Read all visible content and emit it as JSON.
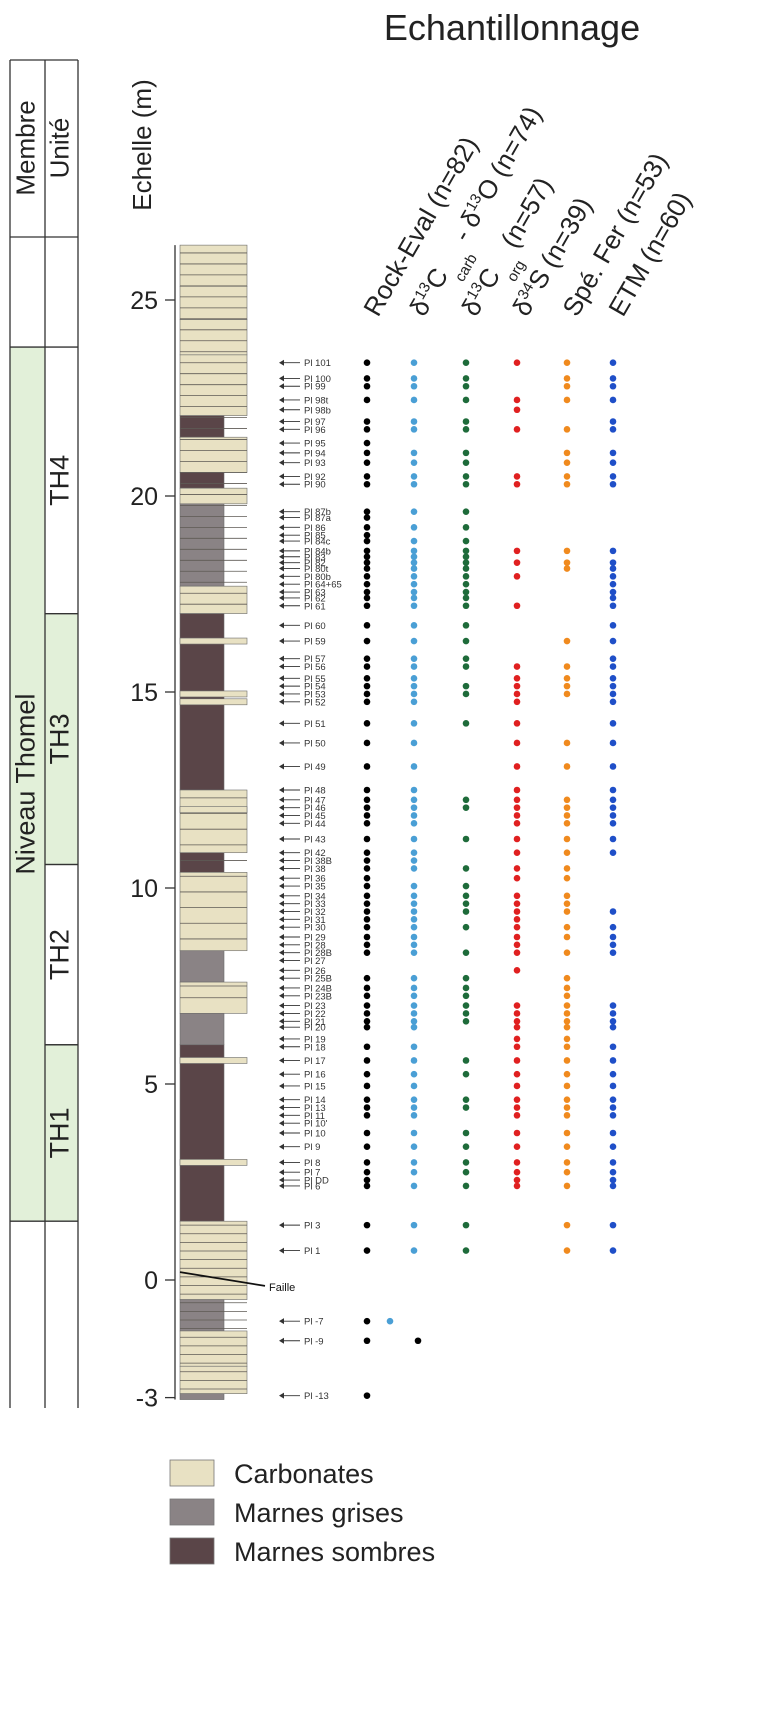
{
  "title": "Echantillonnage",
  "table_header": {
    "membre": "Membre",
    "unite": "Unité",
    "echelle": "Echelle (m)"
  },
  "membre_name": "Niveau Thomel",
  "units": [
    {
      "label": "TH4",
      "from": 17.0,
      "to": 23.8
    },
    {
      "label": "TH3",
      "from": 10.6,
      "to": 17.0
    },
    {
      "label": "TH2",
      "from": 6.0,
      "to": 10.6
    },
    {
      "label": "TH1",
      "from": 1.5,
      "to": 6.0
    }
  ],
  "scale_ticks": [
    "25",
    "20",
    "15",
    "10",
    "5",
    "0",
    "-3"
  ],
  "scale_tick_values": [
    25,
    20,
    15,
    10,
    5,
    0,
    -3
  ],
  "faille_label": "Faille",
  "columns": [
    {
      "key": "re",
      "label_parts": [
        "Rock-Eval (n=82)"
      ],
      "color": "#000000"
    },
    {
      "key": "cc",
      "label_parts": [
        "δ",
        "13",
        "C",
        "carb",
        " - δ",
        "13",
        "O (n=74)"
      ],
      "color": "#4a9fd5"
    },
    {
      "key": "co",
      "label_parts": [
        "δ",
        "13",
        "C",
        "org",
        " (n=57)"
      ],
      "color": "#1e6b3a"
    },
    {
      "key": "s",
      "label_parts": [
        "δ",
        "34",
        "S (n=39)"
      ],
      "color": "#e02020"
    },
    {
      "key": "fe",
      "label_parts": [
        "Spé. Fer (n=53)"
      ],
      "color": "#f08a1e"
    },
    {
      "key": "etm",
      "label_parts": [
        "ETM (n=60)"
      ],
      "color": "#1f4fc8"
    }
  ],
  "samples": [
    {
      "name": "Pl 101",
      "depth": 23.4,
      "cols": [
        "re",
        "cc",
        "co",
        "s",
        "fe",
        "etm"
      ]
    },
    {
      "name": "Pl 100",
      "depth": 23.0,
      "cols": [
        "re",
        "cc",
        "co",
        "fe",
        "etm"
      ]
    },
    {
      "name": "Pl 99",
      "depth": 22.8,
      "cols": [
        "re",
        "cc",
        "co",
        "fe",
        "etm"
      ]
    },
    {
      "name": "Pl 98t",
      "depth": 22.45,
      "cols": [
        "re",
        "cc",
        "co",
        "s",
        "fe",
        "etm"
      ]
    },
    {
      "name": "Pl 98b",
      "depth": 22.2,
      "cols": [
        "s"
      ]
    },
    {
      "name": "Pl 97",
      "depth": 21.9,
      "cols": [
        "re",
        "cc",
        "co",
        "etm"
      ]
    },
    {
      "name": "Pl 96",
      "depth": 21.7,
      "cols": [
        "re",
        "cc",
        "co",
        "s",
        "fe",
        "etm"
      ]
    },
    {
      "name": "Pl 95",
      "depth": 21.35,
      "cols": [
        "re"
      ]
    },
    {
      "name": "Pl 94",
      "depth": 21.1,
      "cols": [
        "re",
        "cc",
        "co",
        "fe",
        "etm"
      ]
    },
    {
      "name": "Pl 93",
      "depth": 20.85,
      "cols": [
        "re",
        "cc",
        "co",
        "fe",
        "etm"
      ]
    },
    {
      "name": "Pl 92",
      "depth": 20.5,
      "cols": [
        "re",
        "cc",
        "co",
        "s",
        "fe",
        "etm"
      ]
    },
    {
      "name": "Pl 90",
      "depth": 20.3,
      "cols": [
        "re",
        "cc",
        "co",
        "s",
        "fe",
        "etm"
      ]
    },
    {
      "name": "Pl 87b",
      "depth": 19.6,
      "cols": [
        "re",
        "cc",
        "co"
      ]
    },
    {
      "name": "Pl 87a",
      "depth": 19.45,
      "cols": [
        "re"
      ]
    },
    {
      "name": "Pl 86",
      "depth": 19.2,
      "cols": [
        "re",
        "cc",
        "co"
      ]
    },
    {
      "name": "Pl 85",
      "depth": 19.0,
      "cols": [
        "re"
      ]
    },
    {
      "name": "Pl 84c",
      "depth": 18.85,
      "cols": [
        "re",
        "cc",
        "co"
      ]
    },
    {
      "name": "Pl 84b",
      "depth": 18.6,
      "cols": [
        "re",
        "cc",
        "co",
        "s",
        "fe",
        "etm"
      ]
    },
    {
      "name": "Pl 83",
      "depth": 18.45,
      "cols": [
        "re",
        "cc",
        "co"
      ]
    },
    {
      "name": "Pl 82",
      "depth": 18.3,
      "cols": [
        "re",
        "cc",
        "co",
        "s",
        "fe",
        "etm"
      ]
    },
    {
      "name": "Pl 80t",
      "depth": 18.15,
      "cols": [
        "re",
        "cc",
        "co",
        "fe",
        "etm"
      ]
    },
    {
      "name": "Pl 80b",
      "depth": 17.95,
      "cols": [
        "re",
        "cc",
        "co",
        "s",
        "etm"
      ]
    },
    {
      "name": "Pl 64+65",
      "depth": 17.75,
      "cols": [
        "re",
        "cc",
        "co",
        "etm"
      ]
    },
    {
      "name": "Pl 63",
      "depth": 17.55,
      "cols": [
        "re",
        "cc",
        "co",
        "etm"
      ]
    },
    {
      "name": "Pl 62",
      "depth": 17.4,
      "cols": [
        "re",
        "cc",
        "co",
        "etm"
      ]
    },
    {
      "name": "Pl 61",
      "depth": 17.2,
      "cols": [
        "re",
        "cc",
        "co",
        "s",
        "etm"
      ]
    },
    {
      "name": "Pl 60",
      "depth": 16.7,
      "cols": [
        "re",
        "cc",
        "co",
        "etm"
      ]
    },
    {
      "name": "Pl 59",
      "depth": 16.3,
      "cols": [
        "re",
        "cc",
        "co",
        "fe",
        "etm"
      ]
    },
    {
      "name": "Pl 57",
      "depth": 15.85,
      "cols": [
        "re",
        "cc",
        "co",
        "etm"
      ]
    },
    {
      "name": "Pl 56",
      "depth": 15.65,
      "cols": [
        "re",
        "cc",
        "co",
        "s",
        "fe",
        "etm"
      ]
    },
    {
      "name": "Pl 55",
      "depth": 15.35,
      "cols": [
        "re",
        "cc",
        "s",
        "fe",
        "etm"
      ]
    },
    {
      "name": "Pl 54",
      "depth": 15.15,
      "cols": [
        "re",
        "cc",
        "co",
        "s",
        "fe",
        "etm"
      ]
    },
    {
      "name": "Pl 53",
      "depth": 14.95,
      "cols": [
        "re",
        "cc",
        "co",
        "s",
        "fe",
        "etm"
      ]
    },
    {
      "name": "Pl 52",
      "depth": 14.75,
      "cols": [
        "re",
        "cc",
        "s",
        "etm"
      ]
    },
    {
      "name": "Pl 51",
      "depth": 14.2,
      "cols": [
        "re",
        "cc",
        "co",
        "s",
        "etm"
      ]
    },
    {
      "name": "Pl 50",
      "depth": 13.7,
      "cols": [
        "re",
        "cc",
        "s",
        "fe",
        "etm"
      ]
    },
    {
      "name": "Pl 49",
      "depth": 13.1,
      "cols": [
        "re",
        "cc",
        "s",
        "fe",
        "etm"
      ]
    },
    {
      "name": "Pl 48",
      "depth": 12.5,
      "cols": [
        "re",
        "cc",
        "s",
        "etm"
      ]
    },
    {
      "name": "Pl 47",
      "depth": 12.25,
      "cols": [
        "re",
        "cc",
        "co",
        "s",
        "fe",
        "etm"
      ]
    },
    {
      "name": "Pl 46",
      "depth": 12.05,
      "cols": [
        "re",
        "cc",
        "co",
        "s",
        "fe",
        "etm"
      ]
    },
    {
      "name": "Pl 45",
      "depth": 11.85,
      "cols": [
        "re",
        "cc",
        "s",
        "fe",
        "etm"
      ]
    },
    {
      "name": "Pl 44",
      "depth": 11.65,
      "cols": [
        "re",
        "cc",
        "s",
        "fe",
        "etm"
      ]
    },
    {
      "name": "Pl 43",
      "depth": 11.25,
      "cols": [
        "re",
        "cc",
        "co",
        "s",
        "fe",
        "etm"
      ]
    },
    {
      "name": "Pl 42",
      "depth": 10.9,
      "cols": [
        "re",
        "cc",
        "s",
        "fe",
        "etm"
      ]
    },
    {
      "name": "Pl 38B",
      "depth": 10.7,
      "cols": [
        "re",
        "cc"
      ]
    },
    {
      "name": "Pl 38",
      "depth": 10.5,
      "cols": [
        "re",
        "cc",
        "co",
        "s",
        "fe"
      ]
    },
    {
      "name": "Pl 36",
      "depth": 10.25,
      "cols": [
        "re",
        "s",
        "fe"
      ]
    },
    {
      "name": "Pl 35",
      "depth": 10.05,
      "cols": [
        "re",
        "cc",
        "co"
      ]
    },
    {
      "name": "Pl 34",
      "depth": 9.8,
      "cols": [
        "re",
        "cc",
        "co",
        "s",
        "fe"
      ]
    },
    {
      "name": "Pl 33",
      "depth": 9.6,
      "cols": [
        "re",
        "cc",
        "co",
        "s",
        "fe"
      ]
    },
    {
      "name": "Pl 32",
      "depth": 9.4,
      "cols": [
        "re",
        "cc",
        "co",
        "s",
        "fe",
        "etm"
      ]
    },
    {
      "name": "Pl 31",
      "depth": 9.2,
      "cols": [
        "re",
        "cc",
        "s"
      ]
    },
    {
      "name": "Pl 30",
      "depth": 9.0,
      "cols": [
        "re",
        "cc",
        "co",
        "s",
        "fe",
        "etm"
      ]
    },
    {
      "name": "Pl 29",
      "depth": 8.75,
      "cols": [
        "re",
        "cc",
        "s",
        "fe",
        "etm"
      ]
    },
    {
      "name": "Pl 28",
      "depth": 8.55,
      "cols": [
        "re",
        "cc",
        "s",
        "etm"
      ]
    },
    {
      "name": "Pl 28B",
      "depth": 8.35,
      "cols": [
        "re",
        "cc",
        "co",
        "s",
        "fe",
        "etm"
      ]
    },
    {
      "name": "Pl 27",
      "depth": 8.15,
      "cols": []
    },
    {
      "name": "Pl 26",
      "depth": 7.9,
      "cols": [
        "s"
      ]
    },
    {
      "name": "Pl 25B",
      "depth": 7.7,
      "cols": [
        "re",
        "cc",
        "co",
        "fe"
      ]
    },
    {
      "name": "Pl 24B",
      "depth": 7.45,
      "cols": [
        "re",
        "cc",
        "co",
        "fe"
      ]
    },
    {
      "name": "Pl 23B",
      "depth": 7.25,
      "cols": [
        "re",
        "cc",
        "co",
        "fe"
      ]
    },
    {
      "name": "Pl 23",
      "depth": 7.0,
      "cols": [
        "re",
        "cc",
        "co",
        "s",
        "fe",
        "etm"
      ]
    },
    {
      "name": "Pl 22",
      "depth": 6.8,
      "cols": [
        "re",
        "cc",
        "co",
        "s",
        "fe",
        "etm"
      ]
    },
    {
      "name": "Pl 21",
      "depth": 6.6,
      "cols": [
        "re",
        "cc",
        "co",
        "s",
        "fe",
        "etm"
      ]
    },
    {
      "name": "Pl 20",
      "depth": 6.45,
      "cols": [
        "re",
        "cc",
        "s",
        "fe",
        "etm"
      ]
    },
    {
      "name": "Pl 19",
      "depth": 6.15,
      "cols": [
        "s",
        "fe"
      ]
    },
    {
      "name": "Pl 18",
      "depth": 5.95,
      "cols": [
        "re",
        "cc",
        "s",
        "fe",
        "etm"
      ]
    },
    {
      "name": "Pl 17",
      "depth": 5.6,
      "cols": [
        "re",
        "cc",
        "co",
        "s",
        "fe",
        "etm"
      ]
    },
    {
      "name": "Pl 16",
      "depth": 5.25,
      "cols": [
        "re",
        "cc",
        "co",
        "s",
        "fe",
        "etm"
      ]
    },
    {
      "name": "Pl 15",
      "depth": 4.95,
      "cols": [
        "re",
        "cc",
        "s",
        "fe",
        "etm"
      ]
    },
    {
      "name": "Pl 14",
      "depth": 4.6,
      "cols": [
        "re",
        "cc",
        "co",
        "s",
        "fe",
        "etm"
      ]
    },
    {
      "name": "Pl 13",
      "depth": 4.4,
      "cols": [
        "re",
        "cc",
        "co",
        "s",
        "fe",
        "etm"
      ]
    },
    {
      "name": "Pl 11",
      "depth": 4.2,
      "cols": [
        "re",
        "cc",
        "s",
        "fe",
        "etm"
      ]
    },
    {
      "name": "Pl 10'",
      "depth": 4.0,
      "cols": []
    },
    {
      "name": "Pl 10",
      "depth": 3.75,
      "cols": [
        "re",
        "cc",
        "co",
        "s",
        "fe",
        "etm"
      ]
    },
    {
      "name": "Pl 9",
      "depth": 3.4,
      "cols": [
        "re",
        "cc",
        "co",
        "s",
        "fe",
        "etm"
      ]
    },
    {
      "name": "Pl 8",
      "depth": 3.0,
      "cols": [
        "re",
        "cc",
        "co",
        "s",
        "fe",
        "etm"
      ]
    },
    {
      "name": "Pl 7",
      "depth": 2.75,
      "cols": [
        "re",
        "cc",
        "co",
        "s",
        "fe",
        "etm"
      ]
    },
    {
      "name": "Pl DD",
      "depth": 2.55,
      "cols": [
        "re",
        "s",
        "etm"
      ]
    },
    {
      "name": "Pl 6",
      "depth": 2.4,
      "cols": [
        "re",
        "cc",
        "co",
        "s",
        "fe",
        "etm"
      ]
    },
    {
      "name": "Pl 3",
      "depth": 1.4,
      "cols": [
        "re",
        "cc",
        "co",
        "fe",
        "etm"
      ]
    },
    {
      "name": "Pl 1",
      "depth": 0.75,
      "cols": [
        "re",
        "cc",
        "co",
        "fe",
        "etm"
      ]
    },
    {
      "name": "Pl -7",
      "depth": -1.05,
      "cols": [
        "re",
        "cc"
      ]
    },
    {
      "name": "Pl -9",
      "depth": -1.55,
      "cols": [
        "re",
        "co"
      ]
    },
    {
      "name": "Pl -13",
      "depth": -2.95,
      "cols": [
        "re"
      ]
    }
  ],
  "lithology": [
    {
      "from": 26.4,
      "to": 25.35,
      "type": "carb"
    },
    {
      "from": 25.35,
      "to": 24.5,
      "type": "carb"
    },
    {
      "from": 24.5,
      "to": 23.6,
      "type": "carb"
    },
    {
      "from": 23.6,
      "to": 22.05,
      "type": "carb"
    },
    {
      "from": 22.05,
      "to": 21.5,
      "type": "sombre"
    },
    {
      "from": 21.5,
      "to": 20.6,
      "type": "carb"
    },
    {
      "from": 20.6,
      "to": 20.2,
      "type": "sombre"
    },
    {
      "from": 20.2,
      "to": 19.8,
      "type": "carb"
    },
    {
      "from": 19.8,
      "to": 17.7,
      "type": "grise"
    },
    {
      "from": 17.7,
      "to": 17.0,
      "type": "carb"
    },
    {
      "from": 17.0,
      "to": 12.5,
      "type": "sombre"
    },
    {
      "from": 12.5,
      "to": 10.9,
      "type": "carb"
    },
    {
      "from": 10.9,
      "to": 10.4,
      "type": "sombre"
    },
    {
      "from": 10.4,
      "to": 8.4,
      "type": "carb"
    },
    {
      "from": 8.4,
      "to": 7.6,
      "type": "grise"
    },
    {
      "from": 7.6,
      "to": 6.8,
      "type": "carb"
    },
    {
      "from": 6.8,
      "to": 6.0,
      "type": "grise"
    },
    {
      "from": 6.0,
      "to": 1.5,
      "type": "sombre"
    },
    {
      "from": 1.5,
      "to": -0.5,
      "type": "carb"
    },
    {
      "from": -0.5,
      "to": -1.3,
      "type": "grise"
    },
    {
      "from": -1.3,
      "to": -2.2,
      "type": "carb"
    },
    {
      "from": -2.2,
      "to": -2.9,
      "type": "carb"
    },
    {
      "from": -2.9,
      "to": -3.05,
      "type": "grise"
    }
  ],
  "legend": [
    {
      "type": "carb",
      "label": "Carbonates"
    },
    {
      "type": "grise",
      "label": "Marnes grises"
    },
    {
      "type": "sombre",
      "label": "Marnes sombres"
    }
  ],
  "colors": {
    "carb": "#e8e1c3",
    "grise": "#8a8385",
    "sombre": "#5a4548",
    "unit_fill": "#e2f0d9"
  }
}
